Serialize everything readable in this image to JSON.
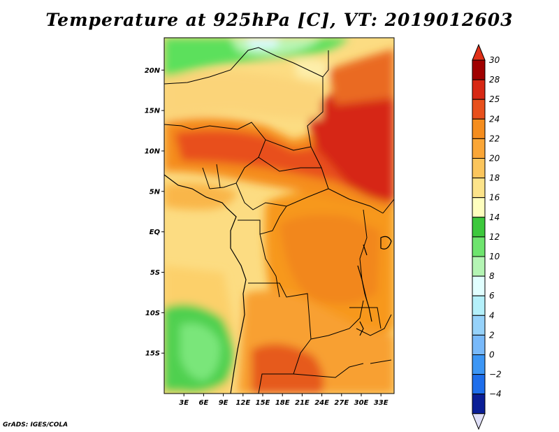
{
  "title": "Temperature at 925hPa [C], VT: 2019012603",
  "credit": "GrADS: IGES/COLA",
  "map": {
    "variable": "Temperature at 925hPa",
    "units": "C",
    "valid_time": "2019012603",
    "lon_range": [
      0,
      35
    ],
    "lat_range": [
      -20,
      24
    ],
    "lat_ticks": [
      {
        "value": 20,
        "label": "20N"
      },
      {
        "value": 15,
        "label": "15N"
      },
      {
        "value": 10,
        "label": "10N"
      },
      {
        "value": 5,
        "label": "5N"
      },
      {
        "value": 0,
        "label": "EQ"
      },
      {
        "value": -5,
        "label": "5S"
      },
      {
        "value": -10,
        "label": "10S"
      },
      {
        "value": -15,
        "label": "15S"
      }
    ],
    "lon_ticks": [
      {
        "value": 3,
        "label": "3E"
      },
      {
        "value": 6,
        "label": "6E"
      },
      {
        "value": 9,
        "label": "9E"
      },
      {
        "value": 12,
        "label": "12E"
      },
      {
        "value": 15,
        "label": "15E"
      },
      {
        "value": 18,
        "label": "18E"
      },
      {
        "value": 21,
        "label": "21E"
      },
      {
        "value": 24,
        "label": "24E"
      },
      {
        "value": 27,
        "label": "27E"
      },
      {
        "value": 30,
        "label": "30E"
      },
      {
        "value": 33,
        "label": "33E"
      }
    ],
    "regions": [
      {
        "name": "sahara-north-green",
        "color": "#5ce05c"
      },
      {
        "name": "sahara-north-cool",
        "color": "#a8f2a0"
      },
      {
        "name": "sahel-yellow",
        "color": "#fcdc82"
      },
      {
        "name": "west-africa-orange",
        "color": "#f58d1e"
      },
      {
        "name": "chad-hot",
        "color": "#e8501c"
      },
      {
        "name": "sudan-hottest",
        "color": "#d62516"
      },
      {
        "name": "gulf-coast-warm",
        "color": "#f9b64a"
      },
      {
        "name": "congo-orange",
        "color": "#f7981f"
      },
      {
        "name": "angola-ocean-green",
        "color": "#3cc83c"
      },
      {
        "name": "namibia-hot",
        "color": "#e65a1e"
      }
    ]
  },
  "colorbar": {
    "levels": [
      {
        "label": "30",
        "color": "#a00000"
      },
      {
        "label": "28",
        "color": "#d72814"
      },
      {
        "label": "25",
        "color": "#e8501c"
      },
      {
        "label": "24",
        "color": "#f58d1e"
      },
      {
        "label": "22",
        "color": "#faa637"
      },
      {
        "label": "20",
        "color": "#fbc55c"
      },
      {
        "label": "18",
        "color": "#fce38a"
      },
      {
        "label": "16",
        "color": "#fefebe"
      },
      {
        "label": "14",
        "color": "#3cc83c"
      },
      {
        "label": "12",
        "color": "#6ee46e"
      },
      {
        "label": "10",
        "color": "#b4f5b4"
      },
      {
        "label": "8",
        "color": "#e1ffff"
      },
      {
        "label": "6",
        "color": "#b4f0fa"
      },
      {
        "label": "4",
        "color": "#96d2fa"
      },
      {
        "label": "2",
        "color": "#78b9fa"
      },
      {
        "label": "0",
        "color": "#3c96f5"
      },
      {
        "label": "−2",
        "color": "#1e6eeb"
      },
      {
        "label": "−4",
        "color": "#1450c8"
      }
    ],
    "top_cap_color": "#e03018",
    "bottom_cap_color": "#e0e0f8",
    "bottom_block_color": "#0a1e96"
  }
}
